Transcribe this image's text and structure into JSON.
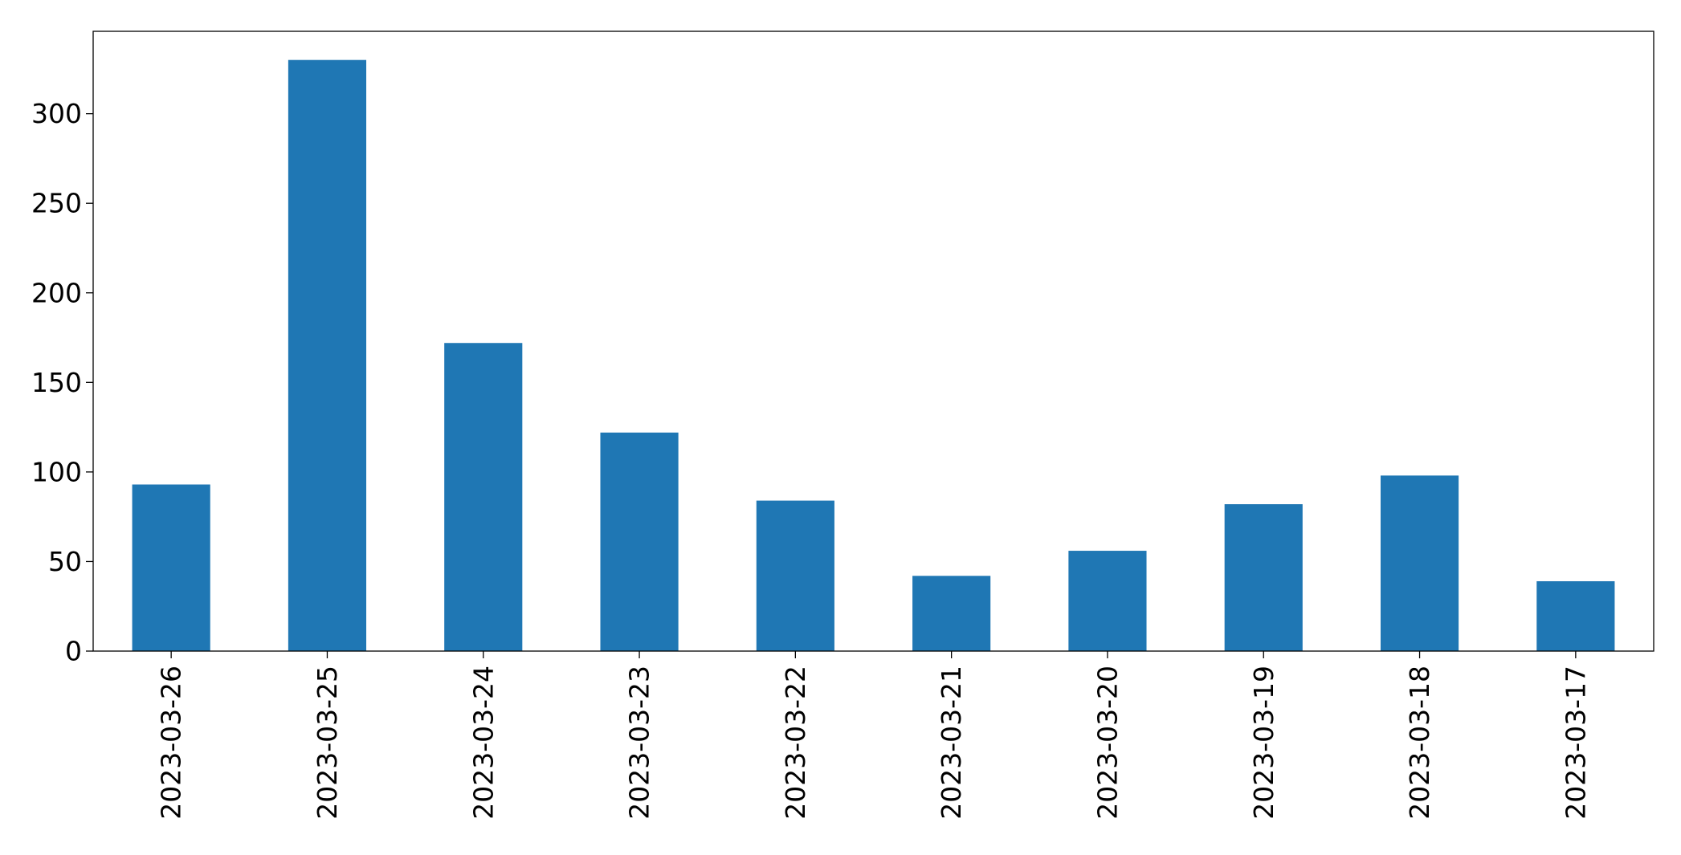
{
  "chart_data": {
    "type": "bar",
    "title": "",
    "xlabel": "",
    "ylabel": "",
    "categories": [
      "2023-03-26",
      "2023-03-25",
      "2023-03-24",
      "2023-03-23",
      "2023-03-22",
      "2023-03-21",
      "2023-03-20",
      "2023-03-19",
      "2023-03-18",
      "2023-03-17"
    ],
    "values": [
      93,
      330,
      172,
      122,
      84,
      42,
      56,
      82,
      98,
      39
    ],
    "ylim": [
      0,
      346
    ],
    "yticks": [
      0,
      50,
      100,
      150,
      200,
      250,
      300
    ],
    "ytick_labels": [
      "0",
      "50",
      "100",
      "150",
      "200",
      "250",
      "300"
    ],
    "grid": false,
    "legend": "none",
    "bar_color": "#1f77b4",
    "xtick_rotation": "vertical"
  }
}
